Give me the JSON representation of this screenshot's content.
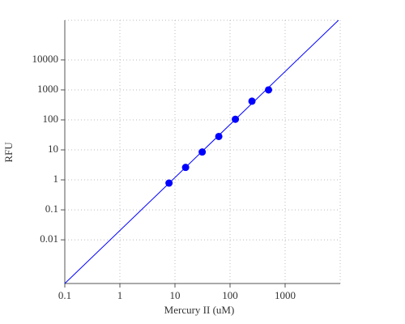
{
  "chart_data": {
    "type": "scatter",
    "x_label": "Mercury II (uM)",
    "y_label": "RFU",
    "log_x": true,
    "log_y": true,
    "grid": true,
    "xlim": [
      0.1,
      10000
    ],
    "ylim": [
      0.00035,
      210000
    ],
    "xticks": [
      0.1,
      1,
      10,
      100,
      1000
    ],
    "yticks": [
      0.01,
      0.1,
      1,
      10,
      100,
      1000,
      10000
    ],
    "series": [
      {
        "mode": "markers",
        "color": "#0000ff",
        "x": [
          7.8,
          15.6,
          31.25,
          62.5,
          125,
          250,
          500
        ],
        "values": [
          0.78,
          2.6,
          8.5,
          28,
          105,
          420,
          1000
        ]
      },
      {
        "mode": "line",
        "color": "#0000ff",
        "x": [
          0.1,
          9300
        ],
        "values": [
          0.00035,
          210000
        ]
      }
    ]
  }
}
